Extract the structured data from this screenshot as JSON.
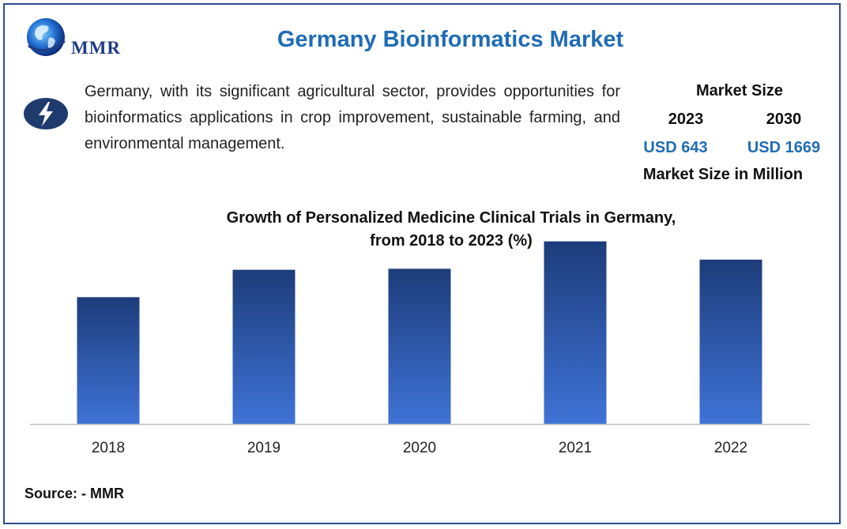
{
  "header": {
    "logo_text": "MMR",
    "title": "Germany Bioinformatics Market"
  },
  "icon": {
    "name": "lightning-bolt-icon",
    "color": "#1f3b6e"
  },
  "intro": {
    "text": "Germany, with its significant agricultural sector, provides opportunities for bioinformatics applications in crop improvement, sustainable farming, and environmental management."
  },
  "market_size": {
    "title": "Market Size",
    "year_a": "2023",
    "year_b": "2030",
    "value_a": "USD 643",
    "value_b": "USD 1669",
    "footer": "Market Size in Million"
  },
  "chart_data": {
    "type": "bar",
    "title": "Growth of Personalized Medicine Clinical Trials in Germany,",
    "subtitle": "from 2018 to 2023 (%)",
    "categories": [
      "2018",
      "2019",
      "2020",
      "2021",
      "2022"
    ],
    "values": [
      12.5,
      15.2,
      15.3,
      18.0,
      16.2
    ],
    "ylim": [
      0,
      20
    ],
    "grid": false,
    "colors": {
      "bar_top": "#1d3c7a",
      "bar_bottom": "#3f73d6",
      "axis": "#bfbfbf"
    }
  },
  "footer": {
    "source": "Source: - MMR"
  },
  "colors": {
    "accent": "#1f6cb5",
    "frame": "#2a4d8f",
    "text": "#111111"
  }
}
